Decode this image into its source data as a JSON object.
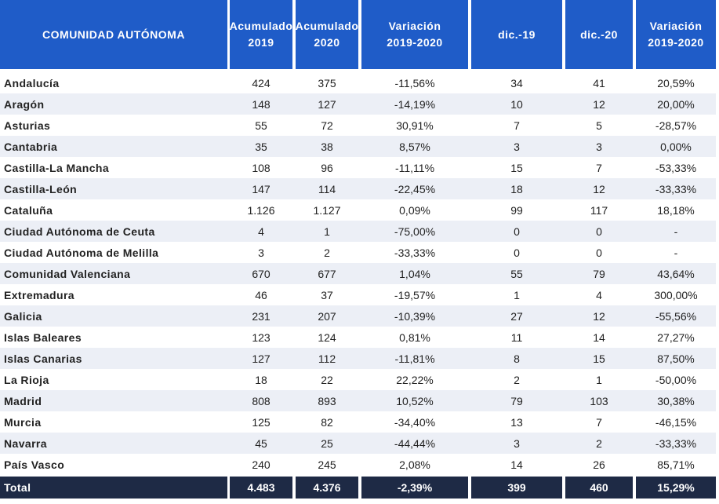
{
  "header": [
    "COMUNIDAD AUTÓNOMA",
    "Acumulado\n2019",
    "Acumulado\n2020",
    "Variación\n2019-2020",
    "dic.-19",
    "dic.-20",
    "Variación\n2019-2020"
  ],
  "rows": [
    [
      "Andalucía",
      "424",
      "375",
      "-11,56%",
      "34",
      "41",
      "20,59%"
    ],
    [
      "Aragón",
      "148",
      "127",
      "-14,19%",
      "10",
      "12",
      "20,00%"
    ],
    [
      "Asturias",
      "55",
      "72",
      "30,91%",
      "7",
      "5",
      "-28,57%"
    ],
    [
      "Cantabria",
      "35",
      "38",
      "8,57%",
      "3",
      "3",
      "0,00%"
    ],
    [
      "Castilla-La Mancha",
      "108",
      "96",
      "-11,11%",
      "15",
      "7",
      "-53,33%"
    ],
    [
      "Castilla-León",
      "147",
      "114",
      "-22,45%",
      "18",
      "12",
      "-33,33%"
    ],
    [
      "Cataluña",
      "1.126",
      "1.127",
      "0,09%",
      "99",
      "117",
      "18,18%"
    ],
    [
      "Ciudad Autónoma de Ceuta",
      "4",
      "1",
      "-75,00%",
      "0",
      "0",
      "-"
    ],
    [
      "Ciudad Autónoma de Melilla",
      "3",
      "2",
      "-33,33%",
      "0",
      "0",
      "-"
    ],
    [
      "Comunidad Valenciana",
      "670",
      "677",
      "1,04%",
      "55",
      "79",
      "43,64%"
    ],
    [
      "Extremadura",
      "46",
      "37",
      "-19,57%",
      "1",
      "4",
      "300,00%"
    ],
    [
      "Galicia",
      "231",
      "207",
      "-10,39%",
      "27",
      "12",
      "-55,56%"
    ],
    [
      "Islas Baleares",
      "123",
      "124",
      "0,81%",
      "11",
      "14",
      "27,27%"
    ],
    [
      "Islas Canarias",
      "127",
      "112",
      "-11,81%",
      "8",
      "15",
      "87,50%"
    ],
    [
      "La Rioja",
      "18",
      "22",
      "22,22%",
      "2",
      "1",
      "-50,00%"
    ],
    [
      "Madrid",
      "808",
      "893",
      "10,52%",
      "79",
      "103",
      "30,38%"
    ],
    [
      "Murcia",
      "125",
      "82",
      "-34,40%",
      "13",
      "7",
      "-46,15%"
    ],
    [
      "Navarra",
      "45",
      "25",
      "-44,44%",
      "3",
      "2",
      "-33,33%"
    ],
    [
      "País Vasco",
      "240",
      "245",
      "2,08%",
      "14",
      "26",
      "85,71%"
    ]
  ],
  "total": [
    "Total",
    "4.483",
    "4.376",
    "-2,39%",
    "399",
    "460",
    "15,29%"
  ]
}
